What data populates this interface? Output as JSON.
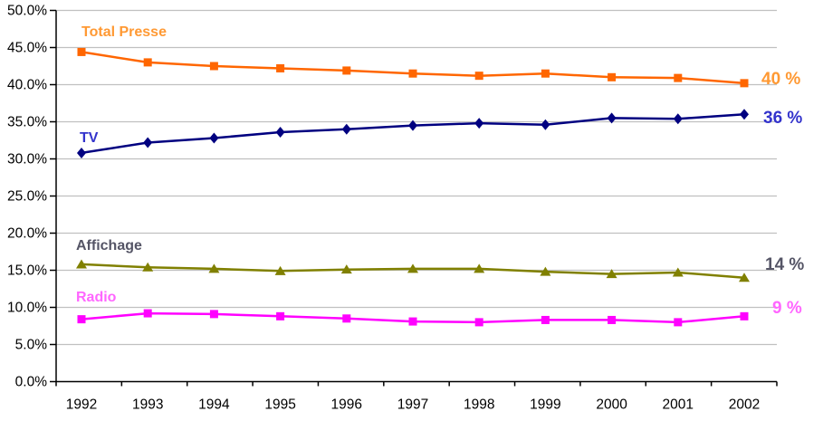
{
  "chart_data": {
    "type": "line",
    "title": "",
    "xlabel": "",
    "ylabel": "",
    "categories": [
      "1992",
      "1993",
      "1994",
      "1995",
      "1996",
      "1997",
      "1998",
      "1999",
      "2000",
      "2001",
      "2002"
    ],
    "y_ticks": [
      "50.0%",
      "45.0%",
      "40.0%",
      "35.0%",
      "30.0%",
      "25.0%",
      "20.0%",
      "15.0%",
      "10.0%",
      "5.0%",
      "0.0%"
    ],
    "ylim": [
      0,
      50
    ],
    "grid": true,
    "legend_position": "inline-labels",
    "gridline_color": "#c0c0c0",
    "axis_color": "#000000",
    "series": [
      {
        "name": "Total Presse",
        "color": "#ff6600",
        "label_color": "#ff9933",
        "marker": "square",
        "end_label": "40 %",
        "values": [
          44.4,
          43.0,
          42.5,
          42.2,
          41.9,
          41.5,
          41.2,
          41.5,
          41.0,
          40.9,
          40.2
        ]
      },
      {
        "name": "TV",
        "color": "#000080",
        "label_color": "#3333cc",
        "marker": "diamond",
        "end_label": "36 %",
        "values": [
          30.8,
          32.2,
          32.8,
          33.6,
          34.0,
          34.5,
          34.8,
          34.6,
          35.5,
          35.4,
          36.0
        ]
      },
      {
        "name": "Affichage",
        "color": "#808000",
        "label_color": "#555566",
        "marker": "triangle",
        "end_label": "14 %",
        "values": [
          15.8,
          15.4,
          15.2,
          14.9,
          15.1,
          15.2,
          15.2,
          14.8,
          14.5,
          14.7,
          14.0
        ]
      },
      {
        "name": "Radio",
        "color": "#ff00ff",
        "label_color": "#ff66ff",
        "marker": "square",
        "end_label": "9 %",
        "values": [
          8.4,
          9.2,
          9.1,
          8.8,
          8.5,
          8.1,
          8.0,
          8.3,
          8.3,
          8.0,
          8.8
        ]
      }
    ]
  }
}
